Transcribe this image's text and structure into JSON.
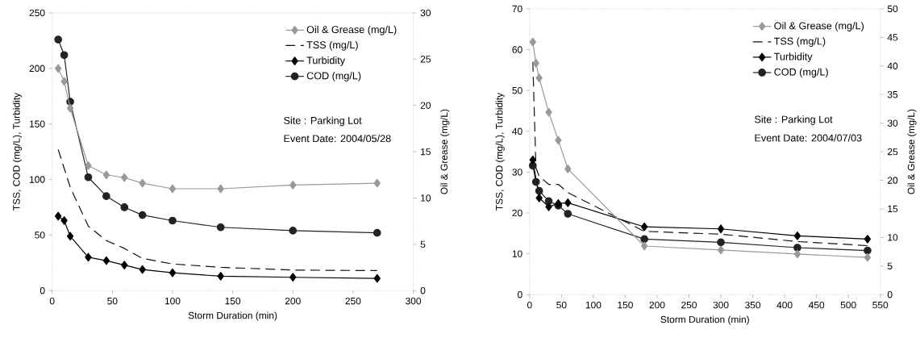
{
  "chart_data": [
    {
      "type": "line",
      "xlabel": "Storm Duration (min)",
      "ylabel": "TSS, COD (mg/L), Turbidity",
      "y2label": "Oil & Grease (mg/L)",
      "legend": "top right",
      "grid": false,
      "xlim": [
        0,
        300
      ],
      "xticks": [
        0,
        50,
        100,
        150,
        200,
        250,
        300
      ],
      "ylim": [
        0,
        250
      ],
      "yticks": [
        0,
        50,
        100,
        150,
        200,
        250
      ],
      "y2lim": [
        0,
        30
      ],
      "y2ticks": [
        0,
        5,
        10,
        15,
        20,
        25,
        30
      ],
      "x": [
        5,
        10,
        15,
        30,
        45,
        60,
        75,
        100,
        140,
        200,
        270
      ],
      "series": [
        {
          "name": "Oil & Grease (mg/L)",
          "color": "#999999",
          "axis": "y2",
          "marker": "diamond",
          "line_style": "solid",
          "values": [
            24.0,
            22.6,
            19.7,
            13.5,
            12.5,
            12.2,
            11.6,
            11.0,
            11.0,
            11.4,
            11.6
          ]
        },
        {
          "name": "TSS (mg/L)",
          "color": "#111111",
          "marker": "none",
          "line_style": "dashed",
          "values": [
            127,
            110,
            93,
            58,
            45,
            38,
            29,
            24,
            21,
            18.5,
            18
          ]
        },
        {
          "name": "Turbidity",
          "color": "#000000",
          "marker": "diamond",
          "line_style": "solid",
          "values": [
            67,
            63,
            49,
            30,
            27,
            23,
            19,
            16,
            13,
            12,
            11
          ]
        },
        {
          "name": "COD (mg/L)",
          "color": "#222222",
          "marker": "circle",
          "line_style": "solid",
          "values": [
            226,
            212,
            170,
            102,
            85,
            75,
            68,
            63,
            57,
            54,
            52
          ]
        }
      ],
      "annotations": [
        "Site : Parking Lot",
        "Event Date: 2004/05/28"
      ]
    },
    {
      "type": "line",
      "xlabel": "Storm Duration (min)",
      "ylabel": "TSS, COD (mg/L), Turbidity",
      "y2label": "Oil & Grease (mg/L)",
      "legend": "top right",
      "grid": false,
      "xlim": [
        0,
        550
      ],
      "xticks": [
        0,
        50,
        100,
        150,
        200,
        250,
        300,
        350,
        400,
        450,
        500,
        550
      ],
      "ylim": [
        0,
        70
      ],
      "yticks": [
        0,
        10,
        20,
        30,
        40,
        50,
        60,
        70
      ],
      "y2lim": [
        0,
        50
      ],
      "y2ticks": [
        0,
        5,
        10,
        15,
        20,
        25,
        30,
        35,
        40,
        45,
        50
      ],
      "x": [
        5,
        10,
        15,
        30,
        45,
        60,
        180,
        300,
        420,
        530
      ],
      "series": [
        {
          "name": "Oil & Grease (mg/L)",
          "color": "#999999",
          "axis": "y2",
          "marker": "diamond",
          "line_style": "solid",
          "values": [
            44.2,
            40.5,
            37.9,
            31.9,
            27.0,
            22.0,
            8.5,
            7.8,
            7.1,
            6.5
          ]
        },
        {
          "name": "TSS (mg/L)",
          "color": "#111111",
          "marker": "none",
          "line_style": "dashed",
          "values": [
            57,
            31,
            29,
            27,
            27,
            25,
            15.5,
            14.8,
            13,
            12
          ]
        },
        {
          "name": "Turbidity",
          "color": "#000000",
          "marker": "diamond",
          "line_style": "solid",
          "values": [
            33,
            null,
            23.7,
            21.5,
            22.3,
            22.5,
            16.6,
            16.1,
            14.4,
            13.6
          ]
        },
        {
          "name": "COD (mg/L)",
          "color": "#222222",
          "marker": "circle",
          "line_style": "solid",
          "values": [
            31.6,
            27.6,
            25.4,
            22.9,
            21.8,
            19.8,
            13.6,
            12.8,
            11.5,
            10.8
          ]
        }
      ],
      "annotations": [
        "Site : Parking Lot",
        "Event Date: 2004/07/03"
      ]
    }
  ]
}
